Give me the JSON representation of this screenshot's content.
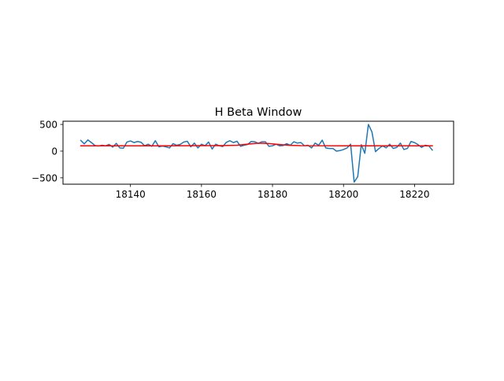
{
  "chart_data": {
    "type": "line",
    "title": "H Beta Window",
    "xlabel": "",
    "ylabel": "",
    "xlim": [
      18121,
      18231
    ],
    "ylim": [
      -620,
      560
    ],
    "xticks": [
      18140,
      18160,
      18180,
      18200,
      18220
    ],
    "yticks": [
      -500,
      0,
      500
    ],
    "grid": false,
    "legend": "none",
    "series": [
      {
        "color": "#1f77b4",
        "x": [
          18126,
          18127,
          18128,
          18129,
          18130,
          18131,
          18132,
          18133,
          18134,
          18135,
          18136,
          18137,
          18138,
          18139,
          18140,
          18141,
          18142,
          18143,
          18144,
          18145,
          18146,
          18147,
          18148,
          18149,
          18150,
          18151,
          18152,
          18153,
          18154,
          18155,
          18156,
          18157,
          18158,
          18159,
          18160,
          18161,
          18162,
          18163,
          18164,
          18165,
          18166,
          18167,
          18168,
          18169,
          18170,
          18171,
          18172,
          18173,
          18174,
          18175,
          18176,
          18177,
          18178,
          18179,
          18180,
          18181,
          18182,
          18183,
          18184,
          18185,
          18186,
          18187,
          18188,
          18189,
          18190,
          18191,
          18192,
          18193,
          18194,
          18195,
          18196,
          18197,
          18198,
          18199,
          18200,
          18201,
          18202,
          18203,
          18204,
          18205,
          18206,
          18207,
          18208,
          18209,
          18210,
          18211,
          18212,
          18213,
          18214,
          18215,
          18216,
          18217,
          18218,
          18219,
          18220,
          18221,
          18222,
          18223,
          18224,
          18225
        ],
        "y": [
          200,
          135,
          210,
          160,
          105,
          95,
          110,
          100,
          125,
          75,
          145,
          60,
          55,
          170,
          190,
          160,
          180,
          165,
          100,
          130,
          90,
          195,
          80,
          95,
          80,
          60,
          140,
          110,
          125,
          170,
          185,
          80,
          150,
          60,
          130,
          100,
          170,
          40,
          130,
          100,
          85,
          165,
          195,
          160,
          185,
          90,
          110,
          125,
          180,
          175,
          145,
          175,
          175,
          90,
          100,
          130,
          100,
          105,
          140,
          110,
          175,
          150,
          160,
          100,
          110,
          60,
          150,
          110,
          205,
          60,
          50,
          50,
          0,
          10,
          30,
          60,
          130,
          -580,
          -480,
          120,
          -40,
          500,
          360,
          -10,
          50,
          100,
          60,
          130,
          50,
          70,
          150,
          30,
          50,
          180,
          160,
          120,
          70,
          110,
          100,
          20
        ]
      },
      {
        "color": "#ff0000",
        "x": [
          18126,
          18150,
          18165,
          18170,
          18173,
          18176,
          18179,
          18182,
          18185,
          18188,
          18200,
          18225
        ],
        "y": [
          100,
          100,
          103,
          110,
          130,
          148,
          142,
          123,
          108,
          102,
          100,
          100
        ]
      }
    ]
  }
}
